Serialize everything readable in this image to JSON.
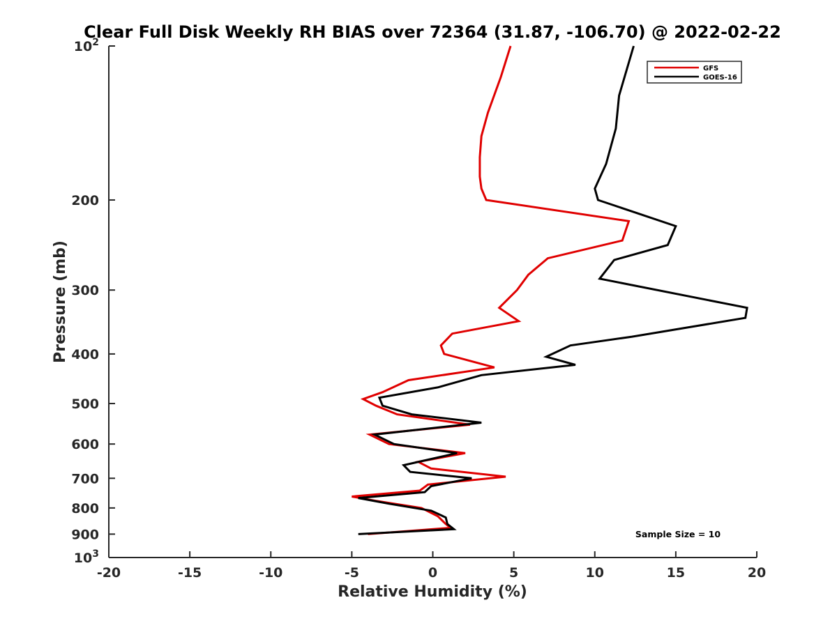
{
  "chart_data": {
    "type": "line",
    "title": "Clear Full Disk Weekly RH BIAS over 72364 (31.87, -106.70) @ 2022-02-22",
    "xlabel": "Relative Humidity (%)",
    "ylabel": "Pressure (mb)",
    "xlim": [
      -20,
      20
    ],
    "ylim": [
      100,
      1000
    ],
    "y_scale": "log",
    "y_reversed": true,
    "grid": false,
    "legend_position": "top-right",
    "x_ticks": [
      "-20",
      "-15",
      "-10",
      "-5",
      "0",
      "5",
      "10",
      "15",
      "20"
    ],
    "x_tick_values": [
      -20,
      -15,
      -10,
      -5,
      0,
      5,
      10,
      15,
      20
    ],
    "y_ticks": [
      {
        "value": 100,
        "base": "10",
        "exp": "2"
      },
      {
        "value": 200,
        "label": "200"
      },
      {
        "value": 300,
        "label": "300"
      },
      {
        "value": 400,
        "label": "400"
      },
      {
        "value": 500,
        "label": "500"
      },
      {
        "value": 600,
        "label": "600"
      },
      {
        "value": 700,
        "label": "700"
      },
      {
        "value": 800,
        "label": "800"
      },
      {
        "value": 900,
        "label": "900"
      },
      {
        "value": 1000,
        "base": "10",
        "exp": "3"
      }
    ],
    "series": [
      {
        "name": "GFS",
        "color": "#e00000",
        "points": [
          [
            4.8,
            100
          ],
          [
            4.2,
            115
          ],
          [
            3.4,
            135
          ],
          [
            3.0,
            150
          ],
          [
            2.9,
            165
          ],
          [
            2.9,
            180
          ],
          [
            3.0,
            190
          ],
          [
            3.3,
            200
          ],
          [
            12.1,
            220
          ],
          [
            11.7,
            240
          ],
          [
            7.1,
            260
          ],
          [
            5.9,
            280
          ],
          [
            5.2,
            300
          ],
          [
            4.1,
            325
          ],
          [
            5.3,
            345
          ],
          [
            1.2,
            365
          ],
          [
            0.5,
            385
          ],
          [
            0.7,
            400
          ],
          [
            3.8,
            425
          ],
          [
            -1.5,
            450
          ],
          [
            -3.1,
            475
          ],
          [
            -4.3,
            490
          ],
          [
            -3.5,
            505
          ],
          [
            -2.2,
            525
          ],
          [
            2.3,
            550
          ],
          [
            -3.9,
            575
          ],
          [
            -2.7,
            600
          ],
          [
            2.0,
            625
          ],
          [
            -0.9,
            650
          ],
          [
            -0.1,
            670
          ],
          [
            4.5,
            695
          ],
          [
            -0.3,
            720
          ],
          [
            -0.8,
            740
          ],
          [
            -5.0,
            760
          ],
          [
            -3.5,
            775
          ],
          [
            -0.7,
            800
          ],
          [
            0.3,
            830
          ],
          [
            0.8,
            860
          ],
          [
            1.1,
            875
          ],
          [
            -4.0,
            900
          ]
        ]
      },
      {
        "name": "GOES-16",
        "color": "#000000",
        "points": [
          [
            12.4,
            100
          ],
          [
            11.5,
            125
          ],
          [
            11.3,
            145
          ],
          [
            10.7,
            170
          ],
          [
            10.0,
            190
          ],
          [
            10.2,
            200
          ],
          [
            15.0,
            225
          ],
          [
            14.5,
            245
          ],
          [
            11.2,
            262
          ],
          [
            10.3,
            285
          ],
          [
            19.4,
            325
          ],
          [
            19.3,
            340
          ],
          [
            12.3,
            370
          ],
          [
            8.5,
            385
          ],
          [
            7.0,
            405
          ],
          [
            8.8,
            420
          ],
          [
            3.0,
            440
          ],
          [
            0.3,
            465
          ],
          [
            -3.3,
            487
          ],
          [
            -3.1,
            505
          ],
          [
            -1.3,
            525
          ],
          [
            3.0,
            545
          ],
          [
            -3.6,
            575
          ],
          [
            -2.4,
            600
          ],
          [
            1.5,
            625
          ],
          [
            -1.8,
            660
          ],
          [
            -1.4,
            680
          ],
          [
            2.4,
            700
          ],
          [
            -0.1,
            725
          ],
          [
            -0.5,
            745
          ],
          [
            -4.6,
            765
          ],
          [
            -2.7,
            785
          ],
          [
            -0.1,
            810
          ],
          [
            0.8,
            835
          ],
          [
            0.9,
            860
          ],
          [
            1.3,
            880
          ],
          [
            -4.6,
            900
          ]
        ]
      }
    ],
    "annotation": "Sample Size = 10"
  }
}
